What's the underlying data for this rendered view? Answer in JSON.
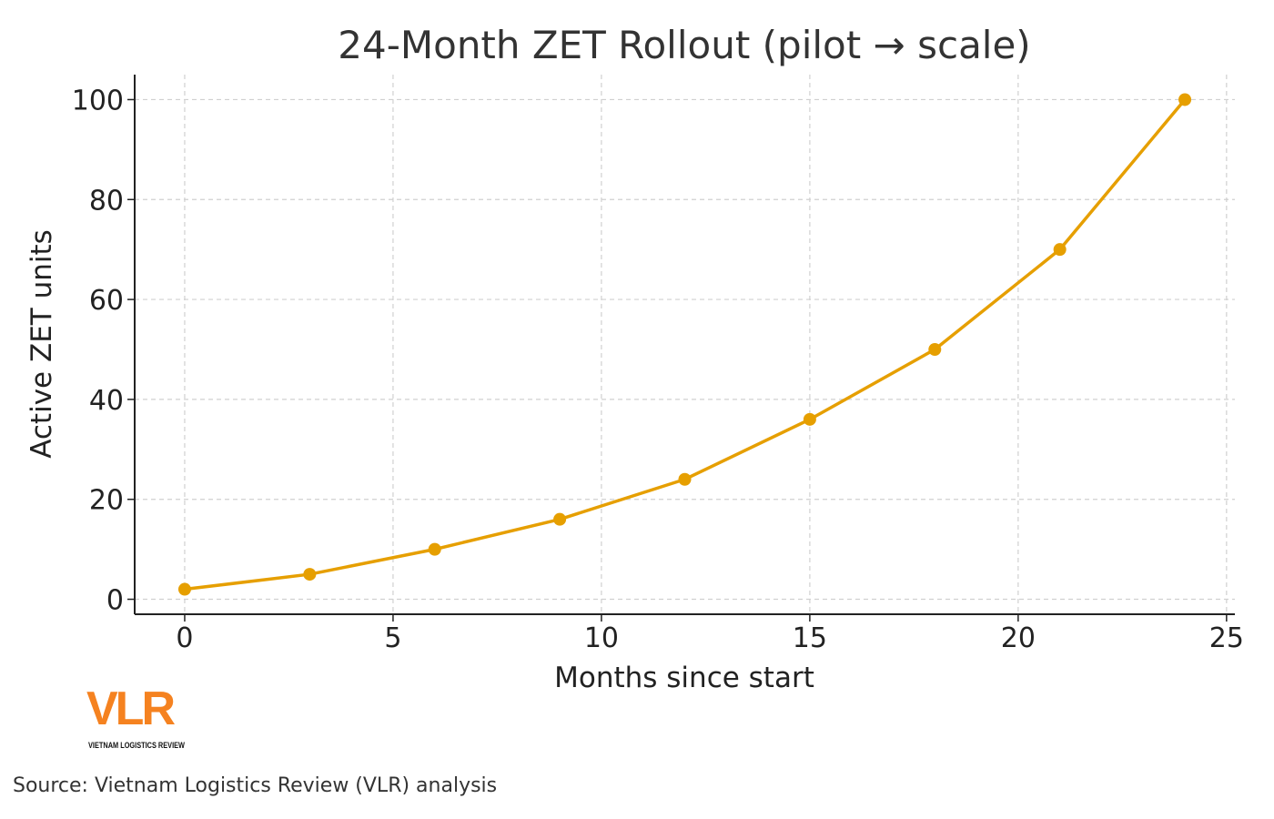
{
  "chart_data": {
    "type": "line",
    "title": "24-Month ZET Rollout (pilot → scale)",
    "xlabel": "Months since start",
    "ylabel": "Active ZET units",
    "x": [
      0,
      3,
      6,
      9,
      12,
      15,
      18,
      21,
      24
    ],
    "series": [
      {
        "values": [
          2,
          5,
          10,
          16,
          24,
          36,
          50,
          70,
          100
        ],
        "color": "#E69F00",
        "marker": "circle"
      }
    ],
    "xlim": [
      -1.2,
      25.2
    ],
    "ylim": [
      -3,
      105
    ],
    "xticks": [
      0,
      5,
      10,
      15,
      20,
      25
    ],
    "yticks": [
      0,
      20,
      40,
      60,
      80,
      100
    ],
    "grid": true,
    "grid_style": "dashed"
  },
  "logo": {
    "text": "VLR",
    "subtitle": "VIETNAM LOGISTICS REVIEW",
    "color": "#F58220"
  },
  "source": "Source: Vietnam Logistics Review (VLR) analysis"
}
